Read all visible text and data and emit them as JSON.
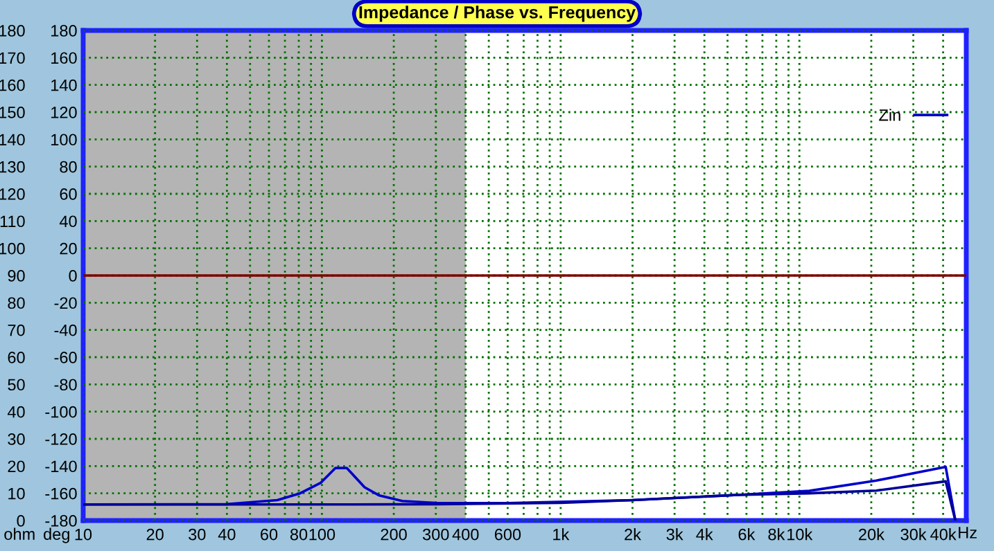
{
  "chart_data": {
    "type": "line",
    "title": "Impedance / Phase vs. Frequency",
    "ylabel": "ohm",
    "y2label": "deg",
    "log": "x",
    "xlim": [
      10,
      50000
    ],
    "xticks": [
      10,
      20,
      30,
      40,
      {
        "value": 50,
        "label": null
      },
      60,
      {
        "value": 70,
        "label": null
      },
      80,
      {
        "value": 90,
        "label": null
      },
      100,
      200,
      300,
      400,
      {
        "value": 500,
        "label": null
      },
      600,
      {
        "value": 700,
        "label": null
      },
      {
        "value": 800,
        "label": null
      },
      {
        "value": 900,
        "label": null
      },
      {
        "value": 1000,
        "label": "1k"
      },
      {
        "value": 2000,
        "label": "2k"
      },
      {
        "value": 3000,
        "label": "3k"
      },
      {
        "value": 4000,
        "label": "4k"
      },
      {
        "value": 5000,
        "label": null
      },
      {
        "value": 6000,
        "label": "6k"
      },
      {
        "value": 7000,
        "label": null
      },
      {
        "value": 8000,
        "label": "8k"
      },
      {
        "value": 9000,
        "label": null
      },
      {
        "value": 10000,
        "label": "10k"
      },
      {
        "value": 20000,
        "label": "20k"
      },
      {
        "value": 30000,
        "label": "30k"
      },
      {
        "value": 40000,
        "label": "40k"
      }
    ],
    "xlabel": "Hz",
    "ylim": [
      0,
      180
    ],
    "yticks": [
      0,
      10,
      20,
      30,
      40,
      50,
      60,
      70,
      80,
      90,
      100,
      110,
      120,
      130,
      140,
      150,
      160,
      170,
      180
    ],
    "y2lim": [
      -180,
      180
    ],
    "y2ticks": [
      -180,
      -160,
      -140,
      -120,
      -100,
      -80,
      -60,
      -40,
      -20,
      0,
      20,
      40,
      60,
      80,
      100,
      120,
      140,
      160,
      180
    ],
    "grid": true,
    "legend": "top right",
    "marker": "none",
    "line_style": "solid",
    "bands": [
      {
        "axis": "x",
        "from": 10,
        "to": 400,
        "color": "#b4b4b4"
      }
    ],
    "ref_lines": [
      {
        "axis": "y2",
        "value": 0,
        "color": "#800000"
      }
    ],
    "series": [
      {
        "name": "Zin",
        "color": "#0000cc",
        "x": [
          10,
          40,
          65,
          81,
          99,
          114,
          127,
          151,
          174,
          217,
          300,
          600,
          2000,
          5500,
          11000,
          21000,
          41000,
          45000
        ],
        "values": [
          5.9,
          6,
          7.5,
          10,
          13.9,
          19.3,
          19.3,
          12.2,
          9.2,
          7.2,
          6.5,
          6.4,
          7.5,
          9.4,
          10.9,
          14.7,
          19.7,
          0
        ]
      },
      {
        "color": "#000099",
        "x": [
          10,
          100,
          300,
          1000,
          2000,
          5500,
          11000,
          21000,
          41000,
          45000
        ],
        "values": [
          5.9,
          5.9,
          6,
          6.5,
          7.5,
          9.4,
          10,
          11,
          14.4,
          0
        ]
      }
    ]
  }
}
